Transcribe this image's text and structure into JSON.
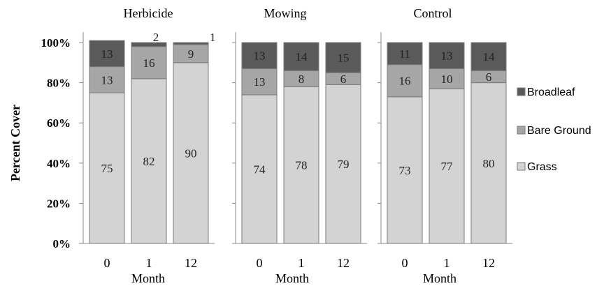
{
  "chart_data": {
    "type": "bar",
    "stacked": true,
    "groups": [
      {
        "title": "Herbicide",
        "categories": [
          "0",
          "1",
          "12"
        ]
      },
      {
        "title": "Mowing",
        "categories": [
          "0",
          "1",
          "12"
        ]
      },
      {
        "title": "Control",
        "categories": [
          "0",
          "1",
          "12"
        ]
      }
    ],
    "series": [
      {
        "name": "Grass",
        "color": "#d3d3d3",
        "values": [
          75,
          82,
          90,
          74,
          78,
          79,
          73,
          77,
          80
        ]
      },
      {
        "name": "Bare Ground",
        "color": "#a6a6a6",
        "values": [
          13,
          16,
          9,
          13,
          8,
          6,
          16,
          10,
          6
        ]
      },
      {
        "name": "Broadleaf",
        "color": "#5a5a5a",
        "values": [
          13,
          2,
          1,
          13,
          14,
          15,
          11,
          13,
          14
        ]
      }
    ],
    "xlabel": "Month",
    "ylabel": "Percent Cover",
    "yticks": [
      "0%",
      "20%",
      "40%",
      "60%",
      "80%",
      "100%"
    ],
    "ylim": [
      0,
      100
    ],
    "legend_position": "right"
  }
}
